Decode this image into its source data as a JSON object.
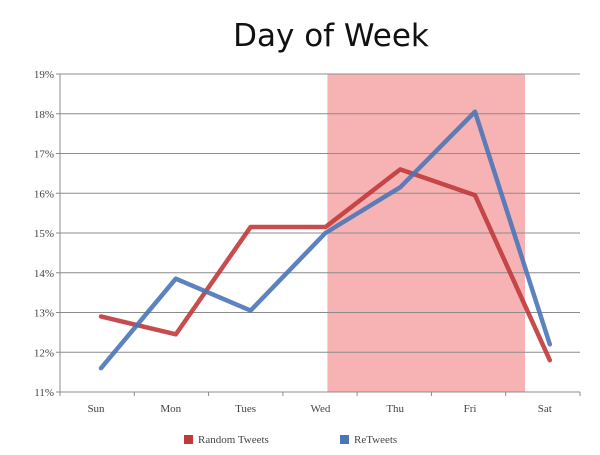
{
  "chart_data": {
    "type": "line",
    "title": "Day of Week",
    "xlabel": "",
    "ylabel": "",
    "categories": [
      "Sun",
      "Mon",
      "Tues",
      "Wed",
      "Thu",
      "Fri",
      "Sat"
    ],
    "y_ticks": [
      "11%",
      "12%",
      "13%",
      "14%",
      "15%",
      "16%",
      "17%",
      "18%",
      "19%"
    ],
    "ylim": [
      11,
      19
    ],
    "grid": true,
    "legend_position": "bottom",
    "highlight_band": {
      "from": "Wed",
      "to": "Fri",
      "color": "#f7b3b3"
    },
    "series": [
      {
        "name": "Random Tweets",
        "color": "#c0393b",
        "values": [
          12.9,
          12.45,
          15.15,
          15.15,
          16.6,
          15.95,
          11.8
        ]
      },
      {
        "name": "ReTweets",
        "color": "#4a76b8",
        "values": [
          11.6,
          13.85,
          13.05,
          15.0,
          16.15,
          18.05,
          12.2
        ]
      }
    ]
  }
}
